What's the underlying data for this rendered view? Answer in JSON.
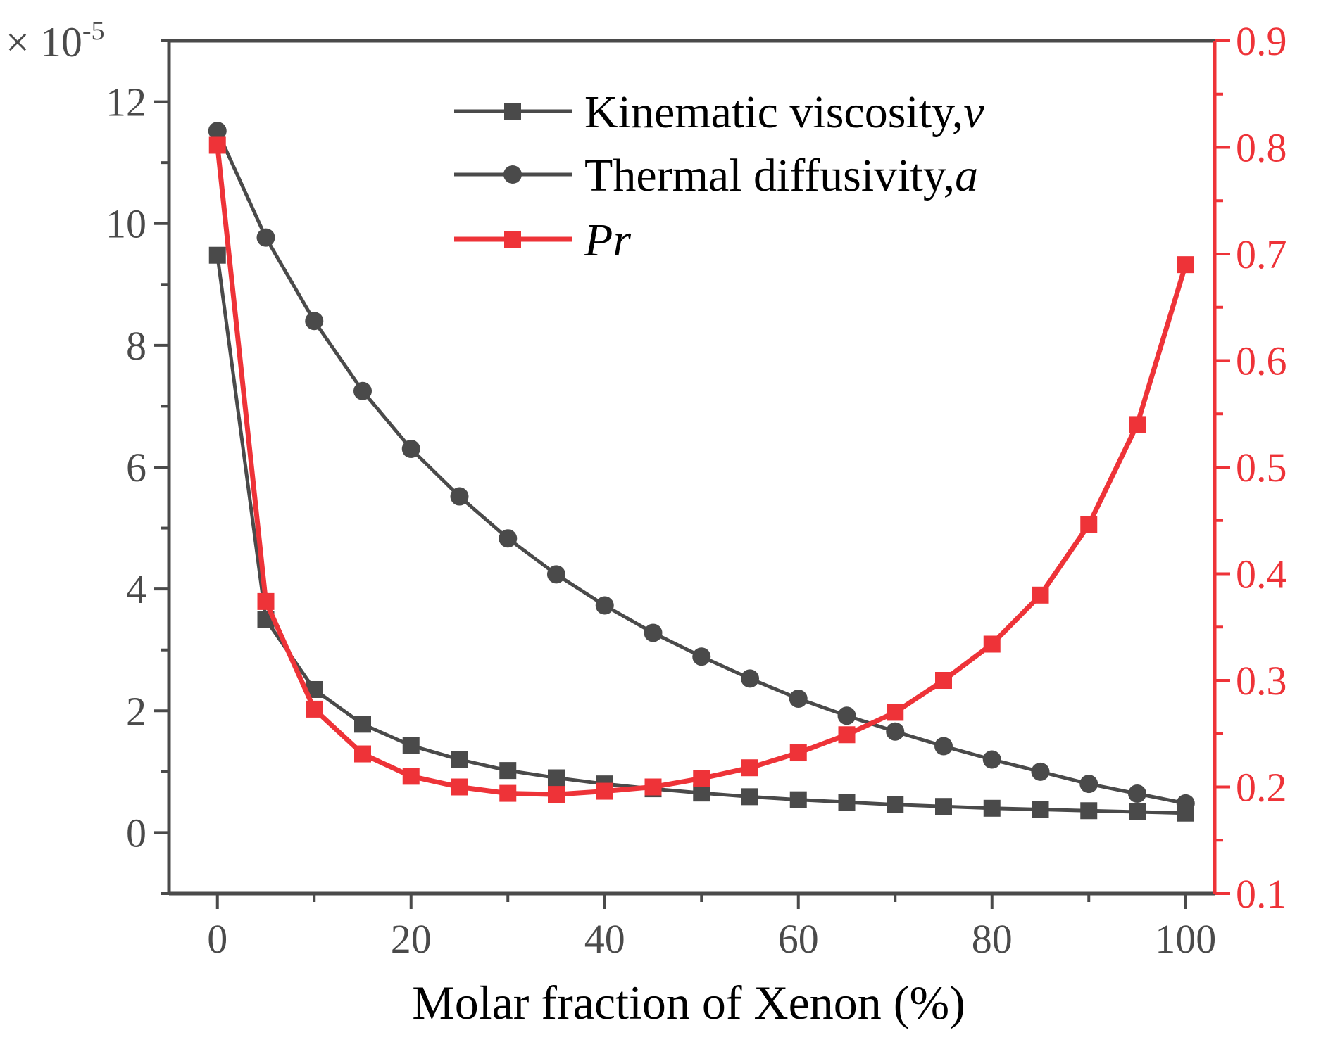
{
  "chart_data": {
    "type": "line",
    "xlabel": "Molar fraction of Xenon (%)",
    "xlim": [
      -5,
      103
    ],
    "x_ticks": [
      0,
      20,
      40,
      60,
      80,
      100
    ],
    "x_tick_labels": [
      "0",
      "20",
      "40",
      "60",
      "80",
      "100"
    ],
    "y_left": {
      "multiplier_prefix": "× 10",
      "multiplier_exponent": "-5",
      "lim": [
        -1,
        13
      ],
      "ticks": [
        0,
        2,
        4,
        6,
        8,
        10,
        12
      ],
      "tick_labels": [
        "0",
        "2",
        "4",
        "6",
        "8",
        "10",
        "12"
      ],
      "color": "#4a4a4a"
    },
    "y_right": {
      "lim": [
        0.1,
        0.9
      ],
      "ticks": [
        0.1,
        0.2,
        0.3,
        0.4,
        0.5,
        0.6,
        0.7,
        0.8,
        0.9
      ],
      "tick_labels": [
        "0.1",
        "0.2",
        "0.3",
        "0.4",
        "0.5",
        "0.6",
        "0.7",
        "0.8",
        "0.9"
      ],
      "color": "#ee3338"
    },
    "legend_position": "top-center",
    "x": [
      0,
      5,
      10,
      15,
      20,
      25,
      30,
      35,
      40,
      45,
      50,
      55,
      60,
      65,
      70,
      75,
      80,
      85,
      90,
      95,
      100
    ],
    "series": [
      {
        "name_prefix": "Kinematic viscosity,",
        "name_symbol": "v",
        "axis": "left",
        "marker": "square",
        "color": "#4a4a4a",
        "values": [
          9.48,
          3.5,
          2.35,
          1.78,
          1.43,
          1.2,
          1.02,
          0.9,
          0.8,
          0.72,
          0.65,
          0.59,
          0.54,
          0.5,
          0.46,
          0.43,
          0.4,
          0.38,
          0.36,
          0.34,
          0.32
        ]
      },
      {
        "name_prefix": "Thermal diffusivity,",
        "name_symbol": "a",
        "axis": "left",
        "marker": "circle",
        "color": "#4a4a4a",
        "values": [
          11.52,
          9.77,
          8.4,
          7.25,
          6.3,
          5.52,
          4.83,
          4.24,
          3.73,
          3.28,
          2.89,
          2.53,
          2.2,
          1.92,
          1.66,
          1.42,
          1.2,
          1.0,
          0.8,
          0.64,
          0.48
        ]
      },
      {
        "name_prefix": "",
        "name_symbol": "Pr",
        "axis": "right",
        "marker": "square",
        "color": "#ee3338",
        "values": [
          0.802,
          0.374,
          0.273,
          0.231,
          0.21,
          0.2,
          0.194,
          0.193,
          0.196,
          0.2,
          0.208,
          0.218,
          0.232,
          0.249,
          0.27,
          0.3,
          0.334,
          0.38,
          0.446,
          0.54,
          0.69
        ]
      }
    ]
  }
}
